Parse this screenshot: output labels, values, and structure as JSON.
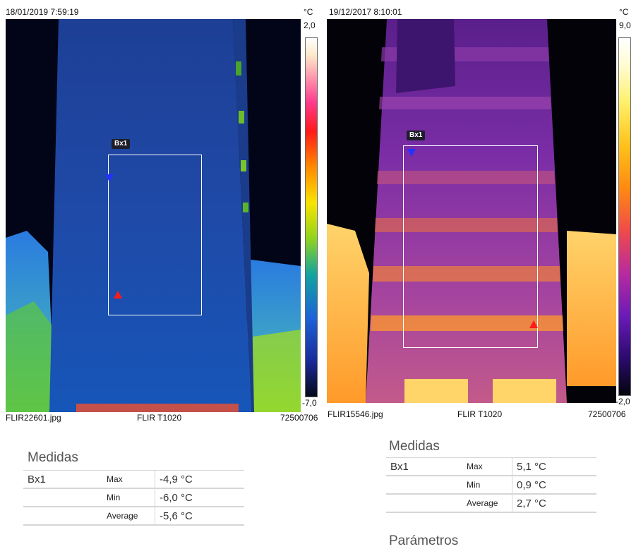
{
  "left": {
    "timestamp": "18/01/2019 7:59:19",
    "unit": "°C",
    "scale_max": "2,0",
    "scale_min": "-7,0",
    "box_label": "Bx1",
    "filename": "FLIR22601.jpg",
    "camera": "FLIR T1020",
    "serial": "72500706",
    "measurements_title": "Medidas",
    "measurements": [
      {
        "object": "Bx1",
        "label": "Max",
        "value": "-4,9 °C"
      },
      {
        "object": "",
        "label": "Min",
        "value": "-6,0 °C"
      },
      {
        "object": "",
        "label": "Average",
        "value": "-5,6 °C"
      }
    ]
  },
  "right": {
    "timestamp": "19/12/2017 8:10:01",
    "unit": "°C",
    "scale_max": "9,0",
    "scale_min": "-2,0",
    "box_label": "Bx1",
    "filename": "FLIR15546.jpg",
    "camera": "FLIR T1020",
    "serial": "72500706",
    "measurements_title": "Medidas",
    "measurements": [
      {
        "object": "Bx1",
        "label": "Max",
        "value": "5,1 °C"
      },
      {
        "object": "",
        "label": "Min",
        "value": "0,9 °C"
      },
      {
        "object": "",
        "label": "Average",
        "value": "2,7 °C"
      }
    ],
    "parameters_title": "Parámetros"
  }
}
